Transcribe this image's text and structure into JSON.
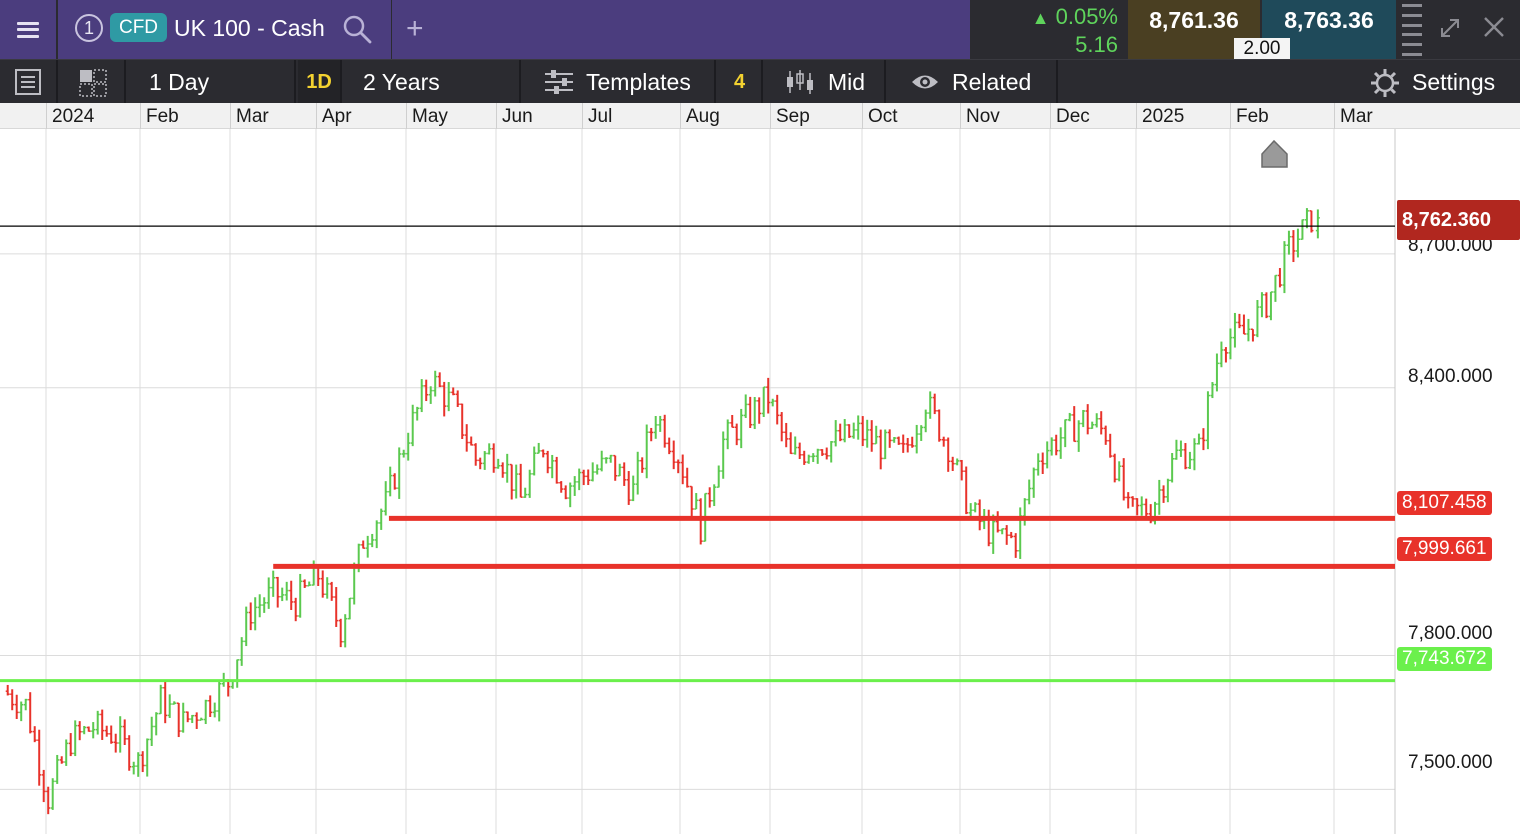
{
  "topbar": {
    "window_number": "1",
    "instrument_type": "CFD",
    "instrument_name": "UK 100 - Cash",
    "change_pct": "0.05%",
    "change_abs": "5.16",
    "bid": "8,761.36",
    "ask": "8,763.36",
    "spread": "2.00",
    "icons": [
      "menu-icon",
      "search-icon",
      "add-tab-icon",
      "drag-handle-icon",
      "expand-icon",
      "close-icon"
    ]
  },
  "toolbar": {
    "interval_label": "1 Day",
    "interval_code": "1D",
    "range_label": "2 Years",
    "templates_label": "Templates",
    "templates_count": "4",
    "price_type_label": "Mid",
    "related_label": "Related",
    "settings_label": "Settings"
  },
  "colors": {
    "up": "#5bc94f",
    "down": "#e8322a",
    "header_purple": "#4b3d7e",
    "toolbar_dark": "#2b2b30",
    "support_green": "#6bf04c",
    "resistance_red": "#e8322a",
    "current_price_tag": "#b1271f"
  },
  "time_axis": {
    "labels": [
      "2024",
      "Feb",
      "Mar",
      "Apr",
      "May",
      "Jun",
      "Jul",
      "Aug",
      "Sep",
      "Oct",
      "Nov",
      "Dec",
      "2025",
      "Feb",
      "Mar"
    ]
  },
  "price_axis": {
    "labels": [
      "8,700.000",
      "8,400.000",
      "7,800.000",
      "7,500.000"
    ]
  },
  "level_tags": {
    "current": "8,762.360",
    "resistance_1": "8,107.458",
    "resistance_2": "7,999.661",
    "support": "7,743.672"
  },
  "chart_data": {
    "type": "ohlc",
    "symbol": "UK 100 - Cash",
    "interval": "1D",
    "y_range": [
      7400,
      8980
    ],
    "x_range": [
      "2024-01-01",
      "2025-03-10"
    ],
    "horizontal_lines": [
      {
        "value": 8762.36,
        "color": "#000000",
        "kind": "current_price"
      },
      {
        "value": 8107.458,
        "color": "#e8322a",
        "from": "2024-05-01"
      },
      {
        "value": 7999.661,
        "color": "#e8322a",
        "from": "2024-03-26"
      },
      {
        "value": 7743.672,
        "color": "#6bf04c",
        "from": "2024-01-01"
      }
    ],
    "closes_weekly": [
      [
        "2024-01-02",
        7720
      ],
      [
        "2024-01-09",
        7690
      ],
      [
        "2024-01-16",
        7480
      ],
      [
        "2024-01-23",
        7610
      ],
      [
        "2024-01-30",
        7640
      ],
      [
        "2024-02-06",
        7620
      ],
      [
        "2024-02-13",
        7560
      ],
      [
        "2024-02-20",
        7700
      ],
      [
        "2024-02-27",
        7650
      ],
      [
        "2024-03-05",
        7690
      ],
      [
        "2024-03-12",
        7740
      ],
      [
        "2024-03-19",
        7900
      ],
      [
        "2024-03-26",
        7940
      ],
      [
        "2024-04-02",
        7920
      ],
      [
        "2024-04-09",
        7980
      ],
      [
        "2024-04-16",
        7860
      ],
      [
        "2024-04-23",
        8060
      ],
      [
        "2024-04-30",
        8140
      ],
      [
        "2024-05-07",
        8300
      ],
      [
        "2024-05-14",
        8420
      ],
      [
        "2024-05-21",
        8360
      ],
      [
        "2024-05-28",
        8240
      ],
      [
        "2024-06-04",
        8260
      ],
      [
        "2024-06-11",
        8150
      ],
      [
        "2024-06-18",
        8270
      ],
      [
        "2024-06-25",
        8180
      ],
      [
        "2024-07-02",
        8210
      ],
      [
        "2024-07-09",
        8230
      ],
      [
        "2024-07-16",
        8170
      ],
      [
        "2024-07-23",
        8340
      ],
      [
        "2024-07-30",
        8250
      ],
      [
        "2024-08-06",
        8090
      ],
      [
        "2024-08-13",
        8280
      ],
      [
        "2024-08-20",
        8330
      ],
      [
        "2024-08-27",
        8380
      ],
      [
        "2024-09-03",
        8240
      ],
      [
        "2024-09-10",
        8270
      ],
      [
        "2024-09-17",
        8280
      ],
      [
        "2024-09-24",
        8300
      ],
      [
        "2024-10-01",
        8270
      ],
      [
        "2024-10-08",
        8250
      ],
      [
        "2024-10-15",
        8370
      ],
      [
        "2024-10-22",
        8270
      ],
      [
        "2024-10-29",
        8120
      ],
      [
        "2024-11-05",
        8070
      ],
      [
        "2024-11-12",
        8060
      ],
      [
        "2024-11-19",
        8250
      ],
      [
        "2024-11-26",
        8290
      ],
      [
        "2024-12-03",
        8330
      ],
      [
        "2024-12-10",
        8300
      ],
      [
        "2024-12-17",
        8120
      ],
      [
        "2024-12-24",
        8130
      ],
      [
        "2025-01-01",
        8250
      ],
      [
        "2025-01-08",
        8260
      ],
      [
        "2025-01-15",
        8510
      ],
      [
        "2025-01-22",
        8520
      ],
      [
        "2025-01-29",
        8590
      ],
      [
        "2025-02-05",
        8710
      ],
      [
        "2025-02-12",
        8780
      ],
      [
        "2025-02-14",
        8762
      ]
    ]
  }
}
